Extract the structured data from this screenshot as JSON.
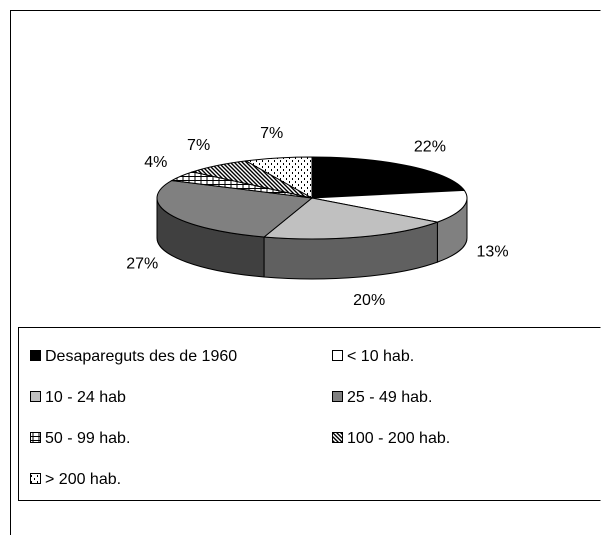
{
  "chart_data": {
    "type": "pie3d",
    "categories": [
      "Desapareguts des de 1960",
      "< 10 hab.",
      "10 - 24 hab",
      "25 - 49 hab.",
      "50 - 99 hab.",
      "100 - 200 hab.",
      "> 200 hab."
    ],
    "values": [
      22,
      13,
      20,
      27,
      4,
      7,
      7
    ],
    "value_labels": [
      "22%",
      "13%",
      "20%",
      "27%",
      "4%",
      "7%",
      "7%"
    ],
    "colors": [
      "#000000",
      "#ffffff",
      "#c0c0c0",
      "#808080",
      "url(#p-hstripe)",
      "url(#p-diag)",
      "url(#p-dots)"
    ],
    "legend": "bottom"
  }
}
